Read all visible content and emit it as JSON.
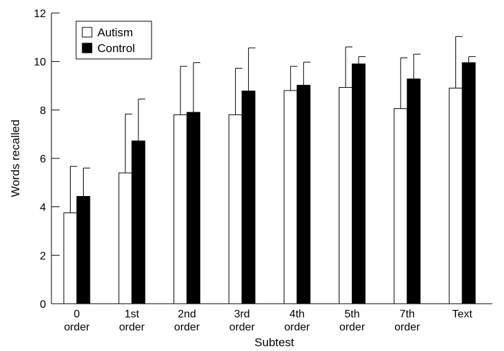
{
  "chart_data": {
    "type": "bar",
    "xlabel": "Subtest",
    "ylabel": "Words recalled",
    "ylim": [
      0,
      12
    ],
    "yticks": [
      "0",
      "2",
      "4",
      "6",
      "8",
      "10",
      "12"
    ],
    "categories": [
      [
        "0",
        "order"
      ],
      [
        "1st",
        "order"
      ],
      [
        "2nd",
        "order"
      ],
      [
        "3rd",
        "order"
      ],
      [
        "4th",
        "order"
      ],
      [
        "5th",
        "order"
      ],
      [
        "7th",
        "order"
      ],
      [
        "Text",
        ""
      ]
    ],
    "legend_position": "top-left",
    "series": [
      {
        "name": "Autism",
        "color": "#ffffff",
        "values": [
          3.75,
          5.4,
          7.8,
          7.8,
          8.8,
          8.93,
          8.05,
          8.9
        ],
        "error": [
          1.92,
          2.43,
          2.0,
          1.92,
          1.0,
          1.67,
          2.1,
          2.13
        ]
      },
      {
        "name": "Control",
        "color": "#000000",
        "values": [
          4.43,
          6.72,
          7.9,
          8.78,
          9.02,
          9.9,
          9.28,
          9.95
        ],
        "error": [
          1.17,
          1.73,
          2.05,
          1.78,
          0.95,
          0.3,
          1.02,
          0.25
        ]
      }
    ]
  }
}
